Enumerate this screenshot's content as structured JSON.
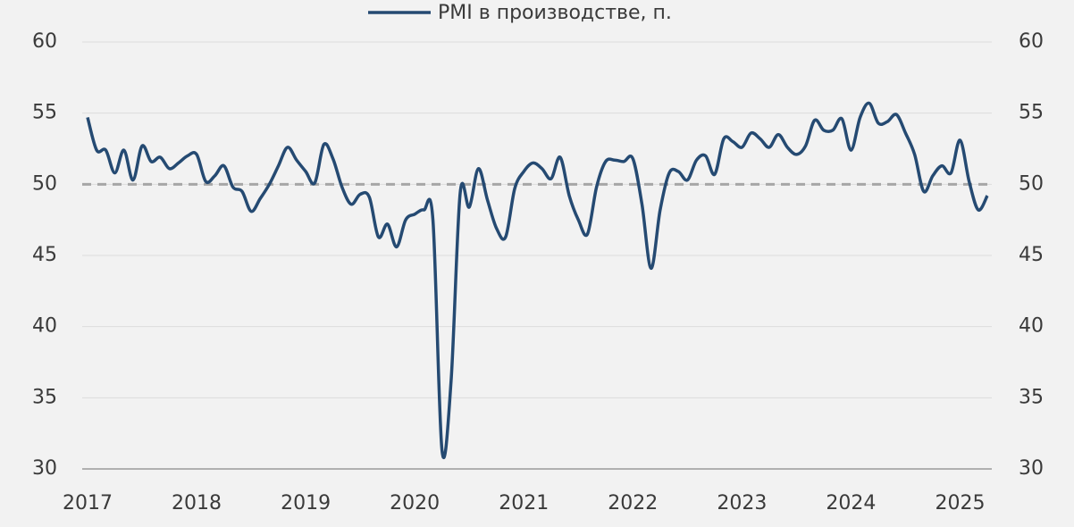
{
  "chart_data": {
    "type": "line",
    "categories": [
      "2017",
      null,
      null,
      null,
      null,
      null,
      null,
      null,
      null,
      null,
      null,
      null,
      "2018",
      null,
      null,
      null,
      null,
      null,
      null,
      null,
      null,
      null,
      null,
      null,
      "2019",
      null,
      null,
      null,
      null,
      null,
      null,
      null,
      null,
      null,
      null,
      null,
      "2020",
      null,
      null,
      null,
      null,
      null,
      null,
      null,
      null,
      null,
      null,
      null,
      "2021",
      null,
      null,
      null,
      null,
      null,
      null,
      null,
      null,
      null,
      null,
      null,
      "2022",
      null,
      null,
      null,
      null,
      null,
      null,
      null,
      null,
      null,
      null,
      null,
      "2023",
      null,
      null,
      null,
      null,
      null,
      null,
      null,
      null,
      null,
      null,
      null,
      "2024",
      null,
      null,
      null,
      null,
      null,
      null,
      null,
      null,
      null,
      null,
      null,
      "2025",
      null,
      null,
      null
    ],
    "series": [
      {
        "name": "PMI в производстве, п.",
        "color": "#254a72",
        "values": [
          54.7,
          52.4,
          52.4,
          50.8,
          52.4,
          50.3,
          52.7,
          51.6,
          51.9,
          51.1,
          51.5,
          52.0,
          52.1,
          50.2,
          50.6,
          51.3,
          49.8,
          49.5,
          48.1,
          49.0,
          50.0,
          51.3,
          52.6,
          51.7,
          50.9,
          50.1,
          52.8,
          51.8,
          49.8,
          48.6,
          49.3,
          49.1,
          46.3,
          47.2,
          45.6,
          47.5,
          47.9,
          48.2,
          47.5,
          31.3,
          36.2,
          49.4,
          48.4,
          51.1,
          48.9,
          46.9,
          46.3,
          49.7,
          50.9,
          51.5,
          51.1,
          50.4,
          51.9,
          49.2,
          47.5,
          46.5,
          49.8,
          51.6,
          51.7,
          51.6,
          51.8,
          48.6,
          44.1,
          48.2,
          50.8,
          50.9,
          50.3,
          51.7,
          52.0,
          50.7,
          53.2,
          53.0,
          52.6,
          53.6,
          53.2,
          52.6,
          53.5,
          52.6,
          52.1,
          52.7,
          54.5,
          53.8,
          53.8,
          54.6,
          52.4,
          54.7,
          55.7,
          54.3,
          54.4,
          54.9,
          53.6,
          52.1,
          49.5,
          50.6,
          51.3,
          50.8,
          53.1,
          50.2,
          48.2,
          49.2
        ]
      }
    ],
    "reference_line": 50,
    "ylim": [
      30,
      60
    ],
    "yticks": [
      30,
      35,
      40,
      45,
      50,
      55,
      60
    ],
    "y2lim": [
      30,
      60
    ],
    "y2ticks": [
      30,
      35,
      40,
      45,
      50,
      55,
      60
    ],
    "grid": true,
    "legend": "top"
  }
}
